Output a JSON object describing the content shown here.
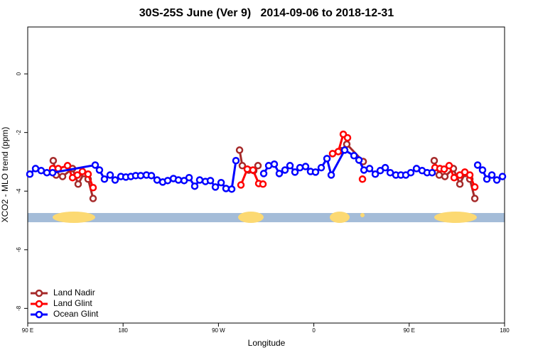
{
  "chart_data": {
    "type": "line",
    "title": "30S-25S June (Ver 9)   2014-09-06 to 2018-12-31",
    "x_label": "Longitude",
    "y_label": "XCO2 - MLO trend (ppm)",
    "xlim": [
      90,
      540
    ],
    "ylim": [
      -8.5,
      1.6
    ],
    "xticks": [
      {
        "value": 90,
        "label": "90 E"
      },
      {
        "value": 180,
        "label": "180"
      },
      {
        "value": 270,
        "label": "90 W"
      },
      {
        "value": 360,
        "label": "0"
      },
      {
        "value": 450,
        "label": "90 E"
      },
      {
        "value": 540,
        "label": "180"
      }
    ],
    "yticks": [
      0,
      -2,
      -4,
      -6,
      -8
    ],
    "legend": "bottom-left",
    "series": [
      {
        "name": "Land Nadir",
        "color": "#a52a2a",
        "x": [
          114.1,
          116.8,
          122.9,
          132.3,
          137.6,
          143.0,
          147.0,
          151.7,
          null,
          289.9,
          292.5,
          298.6,
          303.3,
          307.3,
          null,
          385.8,
          391.1,
          406.6,
          null,
          473.6,
          478.3,
          483.7,
          491.7,
          497.8,
          502.5,
          507.2,
          511.9
        ],
        "values": [
          -2.96,
          -3.45,
          -3.5,
          -3.23,
          -3.76,
          -3.4,
          -3.59,
          -4.25,
          null,
          -2.6,
          -3.13,
          -3.28,
          -3.3,
          -3.13,
          null,
          -2.62,
          -2.4,
          -2.99,
          null,
          -2.96,
          -3.45,
          -3.5,
          -3.23,
          -3.76,
          -3.4,
          -3.59,
          -4.25
        ]
      },
      {
        "name": "Land Glint",
        "color": "#ff0000",
        "x": [
          113.5,
          118.8,
          127.6,
          132.3,
          136.9,
          141.6,
          147.0,
          151.7,
          null,
          291.2,
          297.2,
          302.6,
          308.0,
          312.0,
          null,
          377.7,
          383.1,
          387.8,
          391.8,
          null,
          405.9,
          null,
          474.3,
          479.0,
          483.0,
          487.7,
          492.4,
          497.8,
          502.5,
          507.2,
          511.9
        ],
        "values": [
          -3.23,
          -3.23,
          -3.13,
          -3.54,
          -3.45,
          -3.33,
          -3.42,
          -3.88,
          null,
          -3.79,
          -3.25,
          -3.28,
          -3.74,
          -3.76,
          null,
          -2.72,
          -2.65,
          -2.06,
          -2.18,
          null,
          -3.59,
          null,
          -3.2,
          -3.23,
          -3.25,
          -3.13,
          -3.54,
          -3.45,
          -3.35,
          -3.45,
          -3.86
        ]
      },
      {
        "name": "Ocean Glint",
        "color": "#0000ff",
        "x": [
          92.0,
          97.4,
          102.7,
          108.1,
          113.5,
          153.7,
          157.7,
          162.4,
          167.8,
          172.5,
          177.9,
          182.6,
          187.3,
          191.9,
          196.6,
          202.0,
          206.7,
          212.1,
          217.4,
          222.1,
          227.5,
          232.2,
          237.6,
          242.3,
          247.6,
          252.3,
          257.7,
          262.4,
          267.1,
          272.5,
          277.1,
          282.5,
          286.5,
          null,
          312.7,
          317.4,
          322.7,
          327.4,
          332.8,
          337.5,
          342.2,
          346.9,
          352.2,
          356.9,
          361.6,
          367.0,
          372.4,
          376.4,
          389.1,
          397.9,
          402.6,
          407.3,
          412.6,
          418.0,
          422.7,
          427.4,
          432.1,
          437.4,
          442.1,
          446.8,
          451.5,
          456.9,
          462.2,
          466.9,
          471.6,
          null,
          514.6,
          519.2,
          523.3,
          528.0,
          532.7,
          538.0
        ],
        "values": [
          -3.42,
          -3.23,
          -3.3,
          -3.37,
          -3.37,
          -3.11,
          -3.28,
          -3.59,
          -3.45,
          -3.62,
          -3.5,
          -3.52,
          -3.5,
          -3.47,
          -3.47,
          -3.45,
          -3.47,
          -3.62,
          -3.69,
          -3.64,
          -3.57,
          -3.62,
          -3.64,
          -3.54,
          -3.83,
          -3.62,
          -3.67,
          -3.64,
          -3.86,
          -3.71,
          -3.91,
          -3.93,
          -2.96,
          null,
          -3.4,
          -3.13,
          -3.08,
          -3.4,
          -3.28,
          -3.13,
          -3.35,
          -3.2,
          -3.16,
          -3.33,
          -3.35,
          -3.2,
          -2.89,
          -3.45,
          -2.6,
          -2.79,
          -2.94,
          -3.28,
          -3.23,
          -3.42,
          -3.3,
          -3.2,
          -3.37,
          -3.45,
          -3.45,
          -3.45,
          -3.37,
          -3.23,
          -3.3,
          -3.37,
          -3.37,
          null,
          -3.11,
          -3.28,
          -3.59,
          -3.45,
          -3.62,
          -3.5
        ]
      }
    ]
  }
}
